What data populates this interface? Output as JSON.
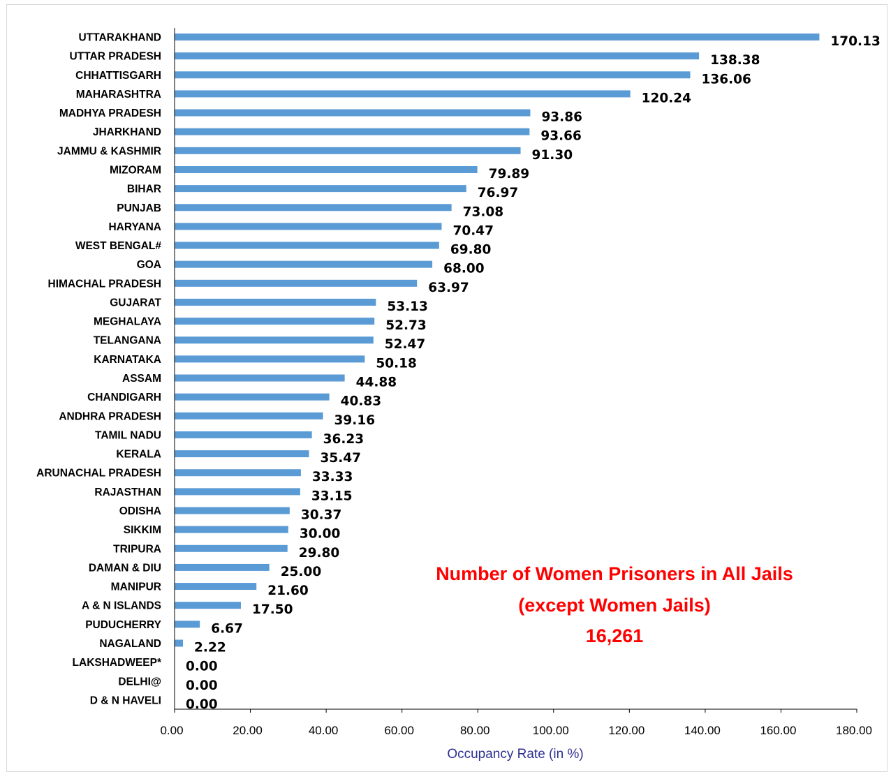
{
  "chart_data": {
    "type": "bar",
    "orientation": "horizontal",
    "title": "",
    "xlabel": "Occupancy Rate (in %)",
    "ylabel": "",
    "xlim": [
      0,
      180
    ],
    "xticks": [
      "0.00",
      "20.00",
      "40.00",
      "60.00",
      "80.00",
      "100.00",
      "120.00",
      "140.00",
      "160.00",
      "180.00"
    ],
    "grid": false,
    "bar_color": "#5b9bd5",
    "categories": [
      "UTTARAKHAND",
      "UTTAR PRADESH",
      "CHHATTISGARH",
      "MAHARASHTRA",
      "MADHYA PRADESH",
      "JHARKHAND",
      "JAMMU & KASHMIR",
      "MIZORAM",
      "BIHAR",
      "PUNJAB",
      "HARYANA",
      "WEST BENGAL#",
      "GOA",
      "HIMACHAL PRADESH",
      "GUJARAT",
      "MEGHALAYA",
      "TELANGANA",
      "KARNATAKA",
      "ASSAM",
      "CHANDIGARH",
      "ANDHRA PRADESH",
      "TAMIL NADU",
      "KERALA",
      "ARUNACHAL PRADESH",
      "RAJASTHAN",
      "ODISHA",
      "SIKKIM",
      "TRIPURA",
      "DAMAN & DIU",
      "MANIPUR",
      "A & N ISLANDS",
      "PUDUCHERRY",
      "NAGALAND",
      "LAKSHADWEEP*",
      "DELHI@",
      "D & N HAVELI"
    ],
    "values": [
      170.13,
      138.38,
      136.06,
      120.24,
      93.86,
      93.66,
      91.3,
      79.89,
      76.97,
      73.08,
      70.47,
      69.8,
      68.0,
      63.97,
      53.13,
      52.73,
      52.47,
      50.18,
      44.88,
      40.83,
      39.16,
      36.23,
      35.47,
      33.33,
      33.15,
      30.37,
      30.0,
      29.8,
      25.0,
      21.6,
      17.5,
      6.67,
      2.22,
      0.0,
      0.0,
      0.0
    ],
    "value_labels": [
      "170.13",
      "138.38",
      "136.06",
      "120.24",
      "93.86",
      "93.66",
      "91.30",
      "79.89",
      "76.97",
      "73.08",
      "70.47",
      "69.80",
      "68.00",
      "63.97",
      "53.13",
      "52.73",
      "52.47",
      "50.18",
      "44.88",
      "40.83",
      "39.16",
      "36.23",
      "35.47",
      "33.33",
      "33.15",
      "30.37",
      "30.00",
      "29.80",
      "25.00",
      "21.60",
      "17.50",
      "6.67",
      "2.22",
      "0.00",
      "0.00",
      "0.00"
    ],
    "annotation": {
      "lines": [
        "Number of Women Prisoners in All Jails",
        "(except Women Jails)",
        "16,261"
      ],
      "color": "#ff0000"
    }
  }
}
